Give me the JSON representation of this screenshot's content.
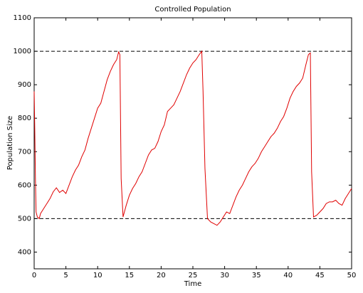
{
  "chart_data": {
    "type": "line",
    "title": "Controlled Population",
    "xlabel": "Time",
    "ylabel": "Population Size",
    "x": [
      0,
      0.1,
      0.2,
      0.3,
      0.5,
      0.8,
      1,
      1.5,
      2,
      2.5,
      3,
      3.5,
      4,
      4.5,
      5,
      5.5,
      6,
      6.5,
      7,
      7.5,
      8,
      8.5,
      9,
      9.5,
      10,
      10.5,
      11,
      11.5,
      12,
      12.5,
      13,
      13.3,
      13.5,
      13.7,
      14,
      14.5,
      15,
      15.5,
      16,
      16.5,
      17,
      17.5,
      18,
      18.5,
      19,
      19.5,
      20,
      20.5,
      21,
      21.5,
      22,
      22.5,
      23,
      23.5,
      24,
      24.5,
      25,
      25.5,
      26,
      26.4,
      26.6,
      26.9,
      27.3,
      27.8,
      28.3,
      28.8,
      29.3,
      29.8,
      30.3,
      30.8,
      31.3,
      31.8,
      32.3,
      32.8,
      33.3,
      33.8,
      34.3,
      34.8,
      35.3,
      35.8,
      36.3,
      36.8,
      37.3,
      37.8,
      38.3,
      38.8,
      39.3,
      39.8,
      40.3,
      40.8,
      41.3,
      41.8,
      42.3,
      42.8,
      43.2,
      43.5,
      43.7,
      44,
      44.5,
      45,
      45.5,
      46,
      46.5,
      47,
      47.5,
      48,
      48.5,
      49,
      49.5,
      50
    ],
    "series": [
      {
        "name": "Population",
        "color": "#e00000",
        "values": [
          880,
          760,
          620,
          520,
          505,
          500,
          515,
          530,
          545,
          560,
          580,
          592,
          578,
          585,
          575,
          600,
          625,
          645,
          660,
          685,
          705,
          740,
          770,
          800,
          830,
          845,
          880,
          915,
          940,
          960,
          975,
          998,
          990,
          620,
          505,
          540,
          570,
          590,
          605,
          625,
          640,
          665,
          690,
          705,
          710,
          730,
          760,
          780,
          820,
          830,
          840,
          860,
          880,
          905,
          930,
          950,
          965,
          975,
          990,
          1000,
          880,
          650,
          500,
          490,
          485,
          480,
          490,
          505,
          520,
          515,
          540,
          565,
          585,
          600,
          620,
          640,
          655,
          665,
          680,
          700,
          715,
          730,
          745,
          755,
          770,
          790,
          805,
          830,
          860,
          880,
          895,
          905,
          920,
          960,
          990,
          995,
          640,
          505,
          510,
          520,
          530,
          545,
          550,
          550,
          555,
          545,
          540,
          560,
          575,
          590
        ]
      }
    ],
    "reference_lines": [
      500,
      1000
    ],
    "xlim": [
      0,
      50
    ],
    "xticks": [
      0,
      5,
      10,
      15,
      20,
      25,
      30,
      35,
      40,
      45,
      50
    ],
    "ylim": [
      350,
      1100
    ],
    "yticks": [
      400,
      500,
      600,
      700,
      800,
      900,
      1000,
      1100
    ]
  }
}
